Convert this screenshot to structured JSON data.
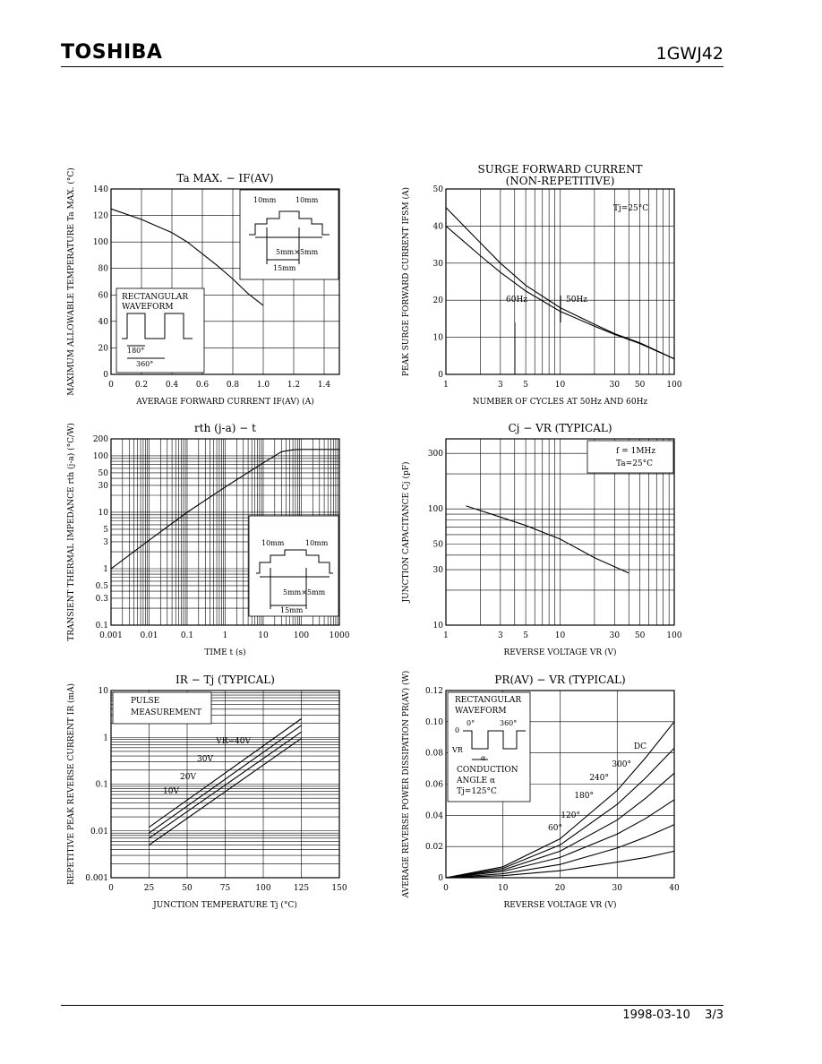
{
  "header": {
    "brand": "TOSHIBA",
    "part_number": "1GWJ42"
  },
  "footer": {
    "date": "1998-03-10",
    "page": "3/3"
  },
  "chart_data": [
    {
      "type": "line",
      "title": "Ta MAX. − IF(AV)",
      "xlabel": "AVERAGE FORWARD CURRENT   IF(AV)   (A)",
      "ylabel": "MAXIMUM ALLOWABLE TEMPERATURE  Ta MAX.  (°C)",
      "xlim": [
        0,
        1.5
      ],
      "ylim": [
        0,
        140
      ],
      "xscale": "linear",
      "yscale": "linear",
      "xticks": [
        0,
        0.2,
        0.4,
        0.6,
        0.8,
        1.0,
        1.2,
        1.4
      ],
      "xticklabels": [
        "0",
        "0.2",
        "0.4",
        "0.6",
        "0.8",
        "1.0",
        "1.2",
        "1.4"
      ],
      "yticks": [
        0,
        20,
        40,
        60,
        80,
        100,
        120,
        140
      ],
      "yticklabels": [
        "0",
        "20",
        "40",
        "60",
        "80",
        "100",
        "120",
        "140"
      ],
      "grid": true,
      "series": [
        {
          "x": [
            0,
            0.2,
            0.4,
            0.5,
            0.6,
            0.7,
            0.8,
            0.9,
            1.0
          ],
          "y": [
            125,
            117,
            107,
            100,
            91,
            82,
            72,
            61,
            52
          ]
        }
      ],
      "annotations": [
        "RECTANGULAR",
        "WAVEFORM",
        "180°",
        "360°",
        "10mm",
        "10mm",
        "5mm×5mm",
        "15mm"
      ]
    },
    {
      "type": "line",
      "title": "SURGE FORWARD CURRENT",
      "subtitle": "(NON-REPETITIVE)",
      "xlabel": "NUMBER OF CYCLES AT 50Hz AND 60Hz",
      "ylabel": "PEAK SURGE FORWARD CURRENT  IFSM  (A)",
      "xlim": [
        1,
        100
      ],
      "ylim": [
        0,
        50
      ],
      "xscale": "log",
      "yscale": "linear",
      "xticks": [
        1,
        3,
        5,
        10,
        30,
        50,
        100
      ],
      "xticklabels": [
        "1",
        "3",
        "5",
        "10",
        "30",
        "50",
        "100"
      ],
      "yticks": [
        0,
        10,
        20,
        30,
        40,
        50
      ],
      "yticklabels": [
        "0",
        "10",
        "20",
        "30",
        "40",
        "50"
      ],
      "grid": true,
      "series": [
        {
          "name": "60Hz",
          "x": [
            1,
            2,
            3,
            5,
            10,
            20,
            30,
            50,
            100
          ],
          "y": [
            45,
            35.5,
            30,
            24,
            18,
            13.5,
            11,
            8.5,
            4.2
          ]
        },
        {
          "name": "50Hz",
          "x": [
            1,
            2,
            3,
            5,
            10,
            20,
            30,
            50,
            100
          ],
          "y": [
            40,
            32,
            27.5,
            22.5,
            17,
            13,
            10.8,
            8.3,
            4.2
          ]
        }
      ],
      "annotations": [
        "Tj=25°C",
        "60Hz",
        "50Hz"
      ]
    },
    {
      "type": "line",
      "title": "rth (j-a) − t",
      "xlabel": "TIME   t   (s)",
      "ylabel": "TRANSIENT THERMAL IMPEDANCE  rth (j-a)  (°C/W)",
      "xlim": [
        0.001,
        1000
      ],
      "ylim": [
        0.1,
        200
      ],
      "xscale": "log",
      "yscale": "log",
      "xticks": [
        0.001,
        0.01,
        0.1,
        1,
        10,
        100,
        1000
      ],
      "xticklabels": [
        "0.001",
        "0.01",
        "0.1",
        "1",
        "10",
        "100",
        "1000"
      ],
      "yticks": [
        0.1,
        0.3,
        0.5,
        1,
        3,
        5,
        10,
        30,
        50,
        100,
        200
      ],
      "yticklabels": [
        "0.1",
        "0.3",
        "0.5",
        "1",
        "3",
        "5",
        "10",
        "30",
        "50",
        "100",
        "200"
      ],
      "grid": true,
      "series": [
        {
          "x": [
            0.001,
            0.01,
            0.1,
            1,
            10,
            30,
            60,
            100,
            1000
          ],
          "y": [
            1,
            3.2,
            10,
            28,
            75,
            118,
            128,
            130,
            130
          ]
        }
      ],
      "annotations": [
        "10mm",
        "10mm",
        "5mm×5mm",
        "15mm"
      ]
    },
    {
      "type": "line",
      "title": "Cj − VR     (TYPICAL)",
      "xlabel": "REVERSE VOLTAGE   VR   (V)",
      "ylabel": "JUNCTION CAPACITANCE   Cj   (pF)",
      "xlim": [
        1,
        100
      ],
      "ylim": [
        10,
        400
      ],
      "xscale": "log",
      "yscale": "log",
      "xticks": [
        1,
        3,
        5,
        10,
        30,
        50,
        100
      ],
      "xticklabels": [
        "1",
        "3",
        "5",
        "10",
        "30",
        "50",
        "100"
      ],
      "yticks": [
        10,
        30,
        50,
        100,
        300
      ],
      "yticklabels": [
        "10",
        "30",
        "50",
        "100",
        "300"
      ],
      "grid": true,
      "series": [
        {
          "x": [
            1.5,
            3,
            5,
            10,
            20,
            40
          ],
          "y": [
            106,
            85,
            72,
            55,
            38,
            28
          ]
        }
      ],
      "annotations": [
        "f = 1MHz",
        "Ta=25°C"
      ]
    },
    {
      "type": "line",
      "title": "IR − Tj          (TYPICAL)",
      "xlabel": "JUNCTION TEMPERATURE   Tj   (°C)",
      "ylabel": "REPETITIVE PEAK REVERSE CURRENT  IR  (mA)",
      "xlim": [
        0,
        150
      ],
      "ylim": [
        0.001,
        10
      ],
      "xscale": "linear",
      "yscale": "log",
      "xticks": [
        0,
        25,
        50,
        75,
        100,
        125,
        150
      ],
      "xticklabels": [
        "0",
        "25",
        "50",
        "75",
        "100",
        "125",
        "150"
      ],
      "yticks": [
        0.001,
        0.01,
        0.1,
        1,
        10
      ],
      "yticklabels": [
        "0.001",
        "0.01",
        "0.1",
        "1",
        "10"
      ],
      "grid": true,
      "series": [
        {
          "name": "VR=40V",
          "x": [
            25,
            125
          ],
          "y": [
            0.012,
            2.5
          ]
        },
        {
          "name": "30V",
          "x": [
            25,
            125
          ],
          "y": [
            0.009,
            1.8
          ]
        },
        {
          "name": "20V",
          "x": [
            25,
            125
          ],
          "y": [
            0.007,
            1.3
          ]
        },
        {
          "name": "10V",
          "x": [
            25,
            125
          ],
          "y": [
            0.005,
            0.95
          ]
        }
      ],
      "annotations": [
        "PULSE",
        "MEASUREMENT"
      ]
    },
    {
      "type": "line",
      "title": "PR(AV) − VR    (TYPICAL)",
      "xlabel": "REVERSE VOLTAGE   VR   (V)",
      "ylabel": "AVERAGE REVERSE POWER DISSIPATION  PR(AV)  (W)",
      "xlim": [
        0,
        40
      ],
      "ylim": [
        0,
        0.12
      ],
      "xscale": "linear",
      "yscale": "linear",
      "xticks": [
        0,
        10,
        20,
        30,
        40
      ],
      "xticklabels": [
        "0",
        "10",
        "20",
        "30",
        "40"
      ],
      "yticks": [
        0,
        0.02,
        0.04,
        0.06,
        0.08,
        0.1,
        0.12
      ],
      "yticklabels": [
        "0",
        "0.02",
        "0.04",
        "0.06",
        "0.08",
        "0.10",
        "0.12"
      ],
      "grid": true,
      "series": [
        {
          "name": "DC",
          "x": [
            0,
            10,
            20,
            30,
            35,
            40
          ],
          "y": [
            0,
            0.007,
            0.025,
            0.056,
            0.077,
            0.1
          ]
        },
        {
          "name": "300°",
          "x": [
            0,
            10,
            20,
            30,
            35,
            40
          ],
          "y": [
            0,
            0.006,
            0.021,
            0.047,
            0.064,
            0.083
          ]
        },
        {
          "name": "240°",
          "x": [
            0,
            10,
            20,
            30,
            35,
            40
          ],
          "y": [
            0,
            0.005,
            0.017,
            0.037,
            0.051,
            0.067
          ]
        },
        {
          "name": "180°",
          "x": [
            0,
            10,
            20,
            30,
            35,
            40
          ],
          "y": [
            0,
            0.004,
            0.013,
            0.028,
            0.038,
            0.05
          ]
        },
        {
          "name": "120°",
          "x": [
            0,
            10,
            20,
            30,
            35,
            40
          ],
          "y": [
            0,
            0.0025,
            0.0085,
            0.019,
            0.026,
            0.034
          ]
        },
        {
          "name": "60°",
          "x": [
            0,
            10,
            20,
            30,
            35,
            40
          ],
          "y": [
            0,
            0.0013,
            0.0045,
            0.01,
            0.013,
            0.017
          ]
        }
      ],
      "annotations": [
        "RECTANGULAR",
        "WAVEFORM",
        "0°",
        "360°",
        "VR",
        "0",
        "α",
        "CONDUCTION",
        "ANGLE α",
        "Tj=125°C"
      ]
    }
  ]
}
